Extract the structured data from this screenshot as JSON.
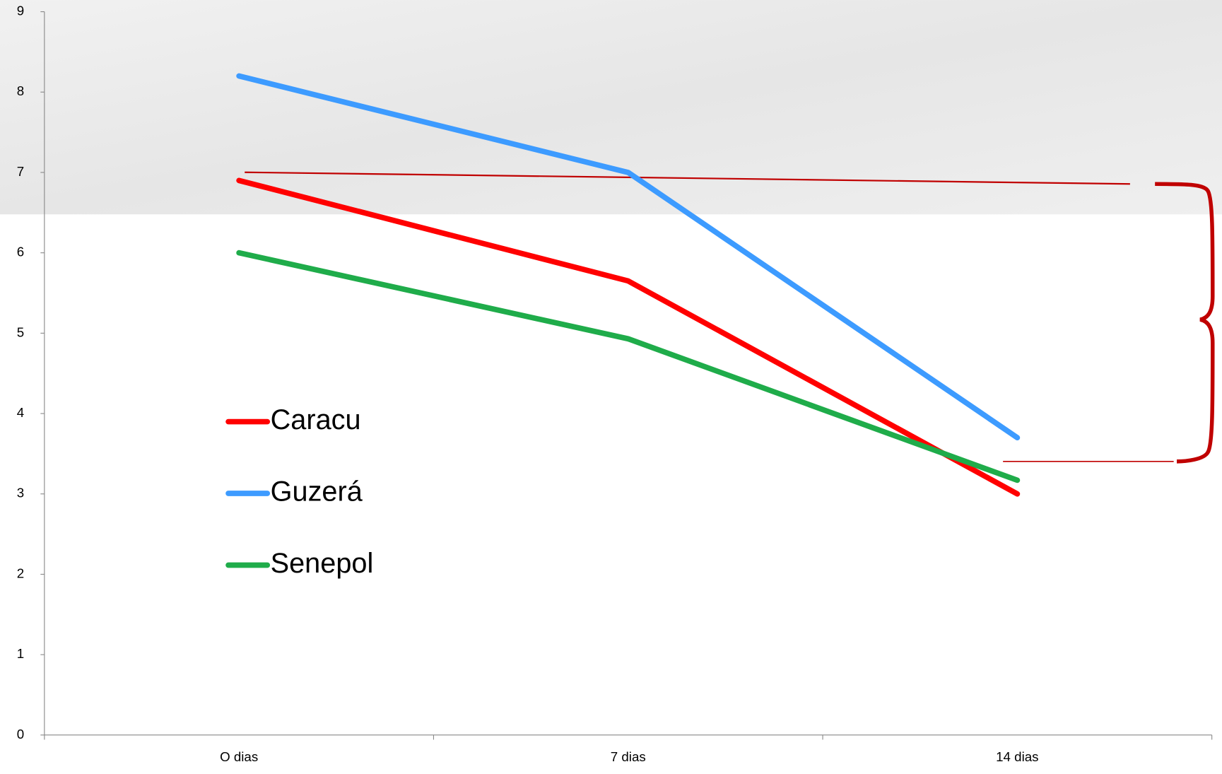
{
  "chart_data": {
    "type": "line",
    "categories": [
      "O dias",
      "7 dias",
      "14 dias"
    ],
    "series": [
      {
        "name": "Caracu",
        "color": "#ff0000",
        "values": [
          6.9,
          5.65,
          3.0
        ]
      },
      {
        "name": "Guzerá",
        "color": "#3d9bff",
        "values": [
          8.2,
          7.0,
          3.7
        ]
      },
      {
        "name": "Senepol",
        "color": "#1fac4a",
        "values": [
          6.0,
          4.93,
          3.17
        ]
      }
    ],
    "ylim": [
      0,
      9
    ],
    "yticks": [
      0,
      1,
      2,
      3,
      4,
      5,
      6,
      7,
      8,
      9
    ]
  }
}
